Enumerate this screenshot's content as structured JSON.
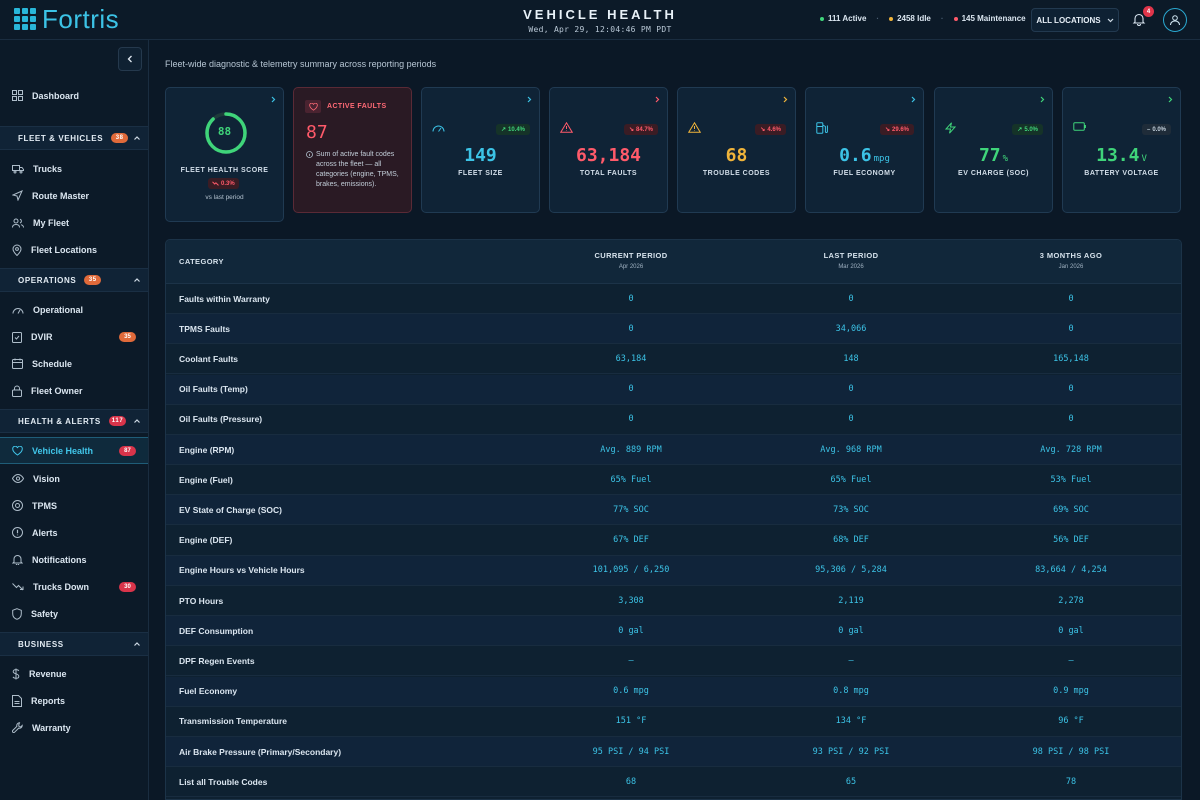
{
  "app": {
    "logo_text": "Fortris"
  },
  "header": {
    "title": "VEHICLE HEALTH",
    "datetime": "Wed, Apr 29, 12:04:46 PM PDT",
    "stats": [
      {
        "label": "111 Active",
        "color": "#3fd47a"
      },
      {
        "label": "2458 Idle",
        "color": "#f0b43a"
      },
      {
        "label": "145 Maintenance",
        "color": "#ff5a6a"
      }
    ],
    "location_select": "ALL LOCATIONS",
    "notification_count": "4"
  },
  "sidebar": {
    "dashboard": "Dashboard",
    "sections": [
      {
        "label": "FLEET & VEHICLES",
        "badge": "38",
        "items": [
          "Trucks",
          "Route Master",
          "My Fleet",
          "Fleet Locations"
        ]
      },
      {
        "label": "OPERATIONS",
        "badge": "35",
        "items": [
          "Operational",
          "DVIR",
          "Schedule",
          "Fleet Owner"
        ],
        "item_badges": {
          "DVIR": "35"
        }
      },
      {
        "label": "HEALTH & ALERTS",
        "badge": "117",
        "items": [
          "Vehicle Health",
          "Vision",
          "TPMS",
          "Alerts",
          "Notifications",
          "Trucks Down",
          "Safety"
        ],
        "item_badges": {
          "Vehicle Health": "87",
          "Trucks Down": "30"
        }
      },
      {
        "label": "BUSINESS",
        "items": [
          "Revenue",
          "Reports",
          "Warranty"
        ]
      }
    ],
    "active_item": "Vehicle Health"
  },
  "main": {
    "subtitle": "Fleet-wide diagnostic & telemetry summary across reporting periods",
    "health_card": {
      "score": "88",
      "score_fraction": 0.88,
      "label": "FLEET HEALTH SCORE",
      "delta": "0.3%",
      "sub": "vs last period"
    },
    "active_faults": {
      "label": "ACTIVE FAULTS",
      "value": "87",
      "description": "Sum of active fault codes across the fleet — all categories (engine, TPMS, brakes, emissions)."
    },
    "metric_cards": [
      {
        "label": "FLEET SIZE",
        "value": "149",
        "unit": "",
        "delta": "10.4%",
        "trend": "up",
        "icon": "speedometer-icon",
        "color": "#3cc3e6"
      },
      {
        "label": "TOTAL FAULTS",
        "value": "63,184",
        "unit": "",
        "delta": "84.7%",
        "trend": "down",
        "icon": "warning-icon",
        "color": "#ff5a6a"
      },
      {
        "label": "TROUBLE CODES",
        "value": "68",
        "unit": "",
        "delta": "4.6%",
        "trend": "down",
        "icon": "warning-icon",
        "color": "#f0b43a"
      },
      {
        "label": "FUEL ECONOMY",
        "value": "0.6",
        "unit": "mpg",
        "delta": "29.6%",
        "trend": "down",
        "icon": "fuel-pump-icon",
        "color": "#3cc3e6"
      },
      {
        "label": "EV CHARGE (SOC)",
        "value": "77",
        "unit": "%",
        "delta": "5.0%",
        "trend": "up",
        "icon": "lightning-icon",
        "color": "#3fd47a"
      },
      {
        "label": "BATTERY VOLTAGE",
        "value": "13.4",
        "unit": "V",
        "delta": "0.0%",
        "trend": "flat",
        "icon": "battery-icon",
        "color": "#3fd47a"
      }
    ],
    "table": {
      "headers": [
        {
          "label": "CATEGORY",
          "sub": ""
        },
        {
          "label": "CURRENT PERIOD",
          "sub": "Apr 2026"
        },
        {
          "label": "LAST PERIOD",
          "sub": "Mar 2026"
        },
        {
          "label": "3 MONTHS AGO",
          "sub": "Jan 2026"
        }
      ],
      "rows": [
        [
          "Faults within Warranty",
          "0",
          "0",
          "0"
        ],
        [
          "TPMS Faults",
          "0",
          "34,066",
          "0"
        ],
        [
          "Coolant Faults",
          "63,184",
          "148",
          "165,148"
        ],
        [
          "Oil Faults (Temp)",
          "0",
          "0",
          "0"
        ],
        [
          "Oil Faults (Pressure)",
          "0",
          "0",
          "0"
        ],
        [
          "Engine (RPM)",
          "Avg. 889 RPM",
          "Avg. 968 RPM",
          "Avg. 728 RPM"
        ],
        [
          "Engine (Fuel)",
          "65% Fuel",
          "65% Fuel",
          "53% Fuel"
        ],
        [
          "EV State of Charge (SOC)",
          "77% SOC",
          "73% SOC",
          "69% SOC"
        ],
        [
          "Engine (DEF)",
          "67% DEF",
          "68% DEF",
          "56% DEF"
        ],
        [
          "Engine Hours vs Vehicle Hours",
          "101,095 / 6,250",
          "95,306 / 5,284",
          "83,664 / 4,254"
        ],
        [
          "PTO Hours",
          "3,308",
          "2,119",
          "2,278"
        ],
        [
          "DEF Consumption",
          "0 gal",
          "0 gal",
          "0 gal"
        ],
        [
          "DPF Regen Events",
          "–",
          "–",
          "–"
        ],
        [
          "Fuel Economy",
          "0.6 mpg",
          "0.8 mpg",
          "0.9 mpg"
        ],
        [
          "Transmission Temperature",
          "151 °F",
          "134 °F",
          "96 °F"
        ],
        [
          "Air Brake Pressure (Primary/Secondary)",
          "95 PSI / 94 PSI",
          "93 PSI / 92 PSI",
          "98 PSI / 98 PSI"
        ],
        [
          "List all Trouble Codes",
          "68",
          "65",
          "78"
        ]
      ]
    }
  }
}
